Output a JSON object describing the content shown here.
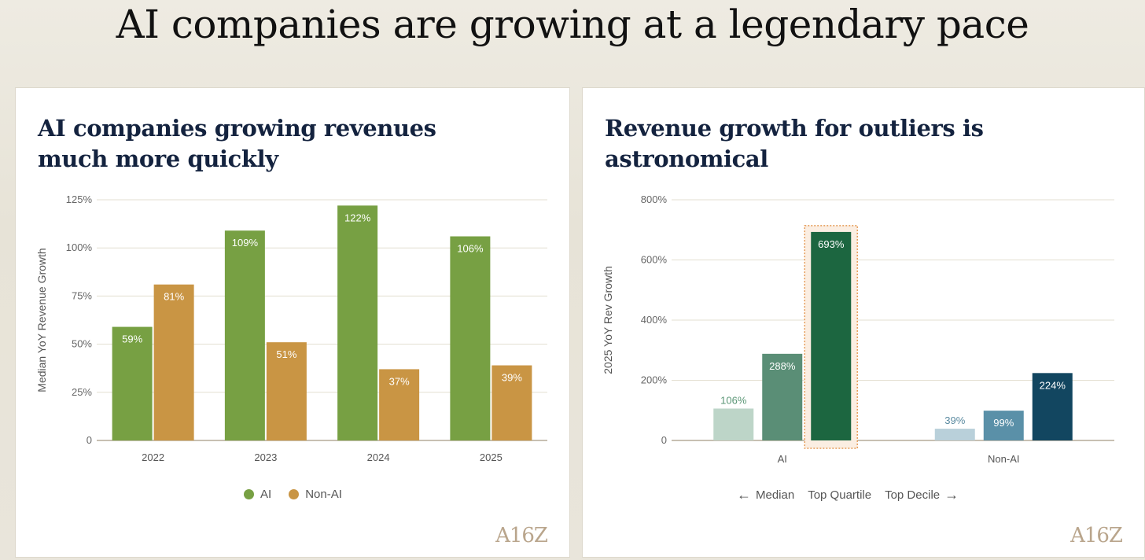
{
  "page_title": "AI companies are growing at a legendary pace",
  "logo_text": "A16Z",
  "left_panel": {
    "title": "AI companies growing revenues much more quickly",
    "legend": [
      {
        "label": "AI",
        "color": "#77a043"
      },
      {
        "label": "Non-AI",
        "color": "#c99544"
      }
    ]
  },
  "right_panel": {
    "title": "Revenue growth for outliers is astronomical",
    "legend": {
      "left_arrow": "←",
      "median": "Median",
      "top_quartile": "Top Quartile",
      "top_decile": "Top Decile",
      "right_arrow": "→"
    }
  },
  "chart_data": [
    {
      "type": "bar",
      "title": "AI companies growing revenues much more quickly",
      "ylabel": "Median YoY Revenue Growth",
      "xlabel": "",
      "categories": [
        "2022",
        "2023",
        "2024",
        "2025"
      ],
      "ylim": [
        0,
        125
      ],
      "yticks": [
        "0",
        "25%",
        "50%",
        "75%",
        "100%",
        "125%"
      ],
      "ytick_values": [
        0,
        25,
        50,
        75,
        100,
        125
      ],
      "grid": true,
      "legend": "bottom",
      "series": [
        {
          "name": "AI",
          "color": "#77a043",
          "values": [
            59,
            109,
            122,
            106
          ],
          "labels": [
            "59%",
            "109%",
            "122%",
            "106%"
          ]
        },
        {
          "name": "Non-AI",
          "color": "#c99544",
          "values": [
            81,
            51,
            37,
            39
          ],
          "labels": [
            "81%",
            "51%",
            "37%",
            "39%"
          ]
        }
      ]
    },
    {
      "type": "bar",
      "title": "Revenue growth for outliers is astronomical",
      "ylabel": "2025 YoY Rev Growth",
      "xlabel": "",
      "categories": [
        "AI",
        "Non-AI"
      ],
      "ylim": [
        0,
        800
      ],
      "yticks": [
        "0",
        "200%",
        "400%",
        "600%",
        "800%"
      ],
      "ytick_values": [
        0,
        200,
        400,
        600,
        800
      ],
      "grid": true,
      "legend": "bottom",
      "series": [
        {
          "name": "Median",
          "values": [
            106,
            39
          ],
          "labels": [
            "106%",
            "39%"
          ],
          "colors": [
            "#bdd5c8",
            "#b9d0da"
          ],
          "label_colors": [
            "#5a9676",
            "#5a8aa0"
          ]
        },
        {
          "name": "Top Quartile",
          "values": [
            288,
            99
          ],
          "labels": [
            "288%",
            "99%"
          ],
          "colors": [
            "#5a8e76",
            "#5a90a8"
          ],
          "label_colors": [
            "#ffffff",
            "#ffffff"
          ]
        },
        {
          "name": "Top Decile",
          "values": [
            693,
            224
          ],
          "labels": [
            "693%",
            "224%"
          ],
          "colors": [
            "#1c6640",
            "#124660"
          ],
          "label_colors": [
            "#ffffff",
            "#ffffff"
          ]
        }
      ],
      "highlight": {
        "category": "AI",
        "series": "Top Decile",
        "color": "#e59a55"
      }
    }
  ]
}
